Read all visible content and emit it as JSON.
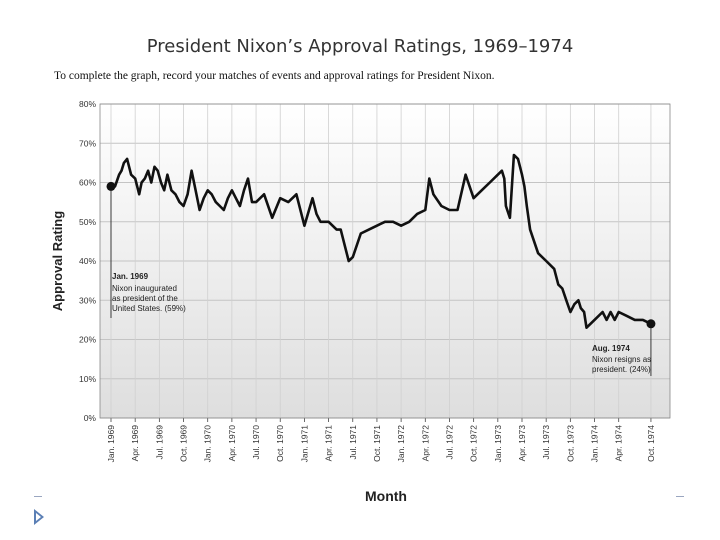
{
  "chart_data": {
    "type": "line",
    "title": "President Nixon’s Approval Ratings, 1969–1974",
    "instructions": "To complete the graph, record your matches of events and approval ratings for President Nixon.",
    "xlabel": "Month",
    "ylabel": "Approval Rating",
    "ylim": [
      0,
      80
    ],
    "yticks": [
      "0%",
      "10%",
      "20%",
      "30%",
      "40%",
      "50%",
      "60%",
      "70%",
      "80%"
    ],
    "categories": [
      "Jan. 1969",
      "Apr. 1969",
      "Jul. 1969",
      "Oct. 1969",
      "Jan. 1970",
      "Apr. 1970",
      "Jul. 1970",
      "Oct. 1970",
      "Jan. 1971",
      "Apr. 1971",
      "Jul. 1971",
      "Oct. 1971",
      "Jan. 1972",
      "Apr. 1972",
      "Jul. 1972",
      "Oct. 1972",
      "Jan. 1973",
      "Apr. 1973",
      "Jul. 1973",
      "Oct. 1973",
      "Jan. 1974",
      "Apr. 1974",
      "Oct. 1974"
    ],
    "xlim": [
      0,
      68
    ],
    "grid": true,
    "series": [
      {
        "name": "Approval Rating",
        "x": [
          0,
          0.5,
          1,
          1.3,
          1.6,
          2,
          2.5,
          3,
          3.5,
          3.8,
          4.2,
          4.6,
          5,
          5.4,
          5.8,
          6.2,
          6.6,
          7,
          7.5,
          8,
          8.5,
          9,
          9.5,
          10,
          10.5,
          11,
          11.5,
          12,
          12.5,
          13,
          13.5,
          14,
          14.5,
          15,
          15.5,
          16,
          16.5,
          17,
          17.5,
          18,
          19,
          20,
          21,
          22,
          23,
          24,
          25,
          25.5,
          26,
          27,
          28,
          28.5,
          29,
          29.5,
          30,
          31,
          32,
          33,
          34,
          35,
          36,
          37,
          38,
          39,
          39.5,
          40,
          41,
          42,
          43,
          44,
          45,
          46,
          47,
          48,
          48.5,
          48.8,
          49,
          49.5,
          50,
          50.5,
          51,
          51.3,
          51.6,
          52,
          53,
          54,
          55,
          55.5,
          56,
          56.5,
          57,
          57.5,
          58,
          58.3,
          58.7,
          59,
          60,
          61,
          61.5,
          62,
          62.5,
          63,
          64,
          65,
          66,
          67
        ],
        "values": [
          59,
          59,
          62,
          63,
          65,
          66,
          62,
          61,
          57,
          60,
          61,
          63,
          60,
          64,
          63,
          60,
          58,
          62,
          58,
          57,
          55,
          54,
          57,
          63,
          58,
          53,
          56,
          58,
          57,
          55,
          54,
          53,
          56,
          58,
          56,
          54,
          58,
          61,
          55,
          55,
          57,
          51,
          56,
          55,
          57,
          49,
          56,
          52,
          50,
          50,
          48,
          48,
          44,
          40,
          41,
          47,
          48,
          49,
          50,
          50,
          49,
          50,
          52,
          53,
          61,
          57,
          54,
          53,
          53,
          62,
          56,
          58,
          60,
          62,
          63,
          61,
          54,
          51,
          67,
          66,
          62,
          59,
          54,
          48,
          42,
          40,
          38,
          34,
          33,
          30,
          27,
          29,
          30,
          28,
          27,
          23,
          25,
          27,
          25,
          27,
          25,
          27,
          26,
          25,
          25,
          24
        ],
        "color": "#111111"
      }
    ],
    "annotations": [
      {
        "title": "Jan. 1969",
        "lines": [
          "Nixon inaugurated",
          "as president of the",
          "United States. (59%)"
        ]
      },
      {
        "title": "Aug. 1974",
        "lines": [
          "Nixon resigns as",
          "president. (24%)"
        ]
      }
    ]
  },
  "colors": {
    "line": "#111111",
    "grid": "#c8c8c8",
    "plot_top": "#ffffff",
    "plot_bottom": "#d8d8d8"
  }
}
